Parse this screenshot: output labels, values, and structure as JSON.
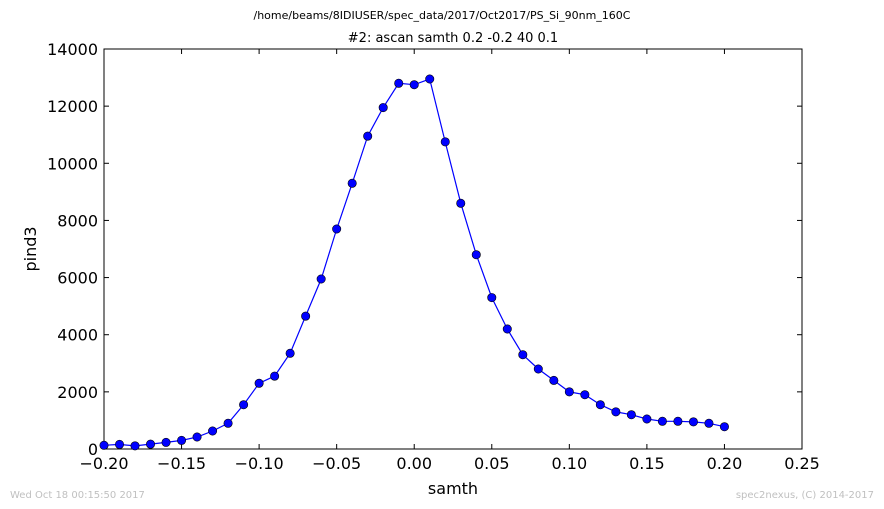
{
  "chart_data": {
    "type": "line",
    "suptitle": "/home/beams/8IDIUSER/spec_data/2017/Oct2017/PS_Si_90nm_160C",
    "title": "#2: ascan  samth 0.2 -0.2  40 0.1",
    "xlabel": "samth",
    "ylabel": "pind3",
    "xlim": [
      -0.2,
      0.25
    ],
    "ylim": [
      0,
      14000
    ],
    "xticks": [
      "−0.20",
      "−0.15",
      "−0.10",
      "−0.05",
      "0.00",
      "0.05",
      "0.10",
      "0.15",
      "0.20",
      "0.25"
    ],
    "yticks": [
      "0",
      "2000",
      "4000",
      "6000",
      "8000",
      "10000",
      "12000",
      "14000"
    ],
    "grid": false,
    "series": [
      {
        "color": "#0000ff",
        "marker": "circle",
        "x": [
          -0.2,
          -0.19,
          -0.18,
          -0.17,
          -0.16,
          -0.15,
          -0.14,
          -0.13,
          -0.12,
          -0.11,
          -0.1,
          -0.09,
          -0.08,
          -0.07,
          -0.06,
          -0.05,
          -0.04,
          -0.03,
          -0.02,
          -0.01,
          0.0,
          0.01,
          0.02,
          0.03,
          0.04,
          0.05,
          0.06,
          0.07,
          0.08,
          0.09,
          0.1,
          0.11,
          0.12,
          0.13,
          0.14,
          0.15,
          0.16,
          0.17,
          0.18,
          0.19,
          0.2
        ],
        "y": [
          130,
          160,
          110,
          170,
          230,
          300,
          420,
          630,
          900,
          1550,
          2300,
          2550,
          3350,
          4650,
          5950,
          7700,
          9300,
          10950,
          11950,
          12800,
          12750,
          12950,
          10750,
          8600,
          6800,
          5300,
          4200,
          3300,
          2800,
          2400,
          2000,
          1900,
          1550,
          1300,
          1200,
          1050,
          970,
          970,
          950,
          900,
          780
        ]
      }
    ]
  },
  "footer": {
    "timestamp": "Wed Oct 18 00:15:50 2017",
    "credit": "spec2nexus, (C) 2014-2017"
  }
}
